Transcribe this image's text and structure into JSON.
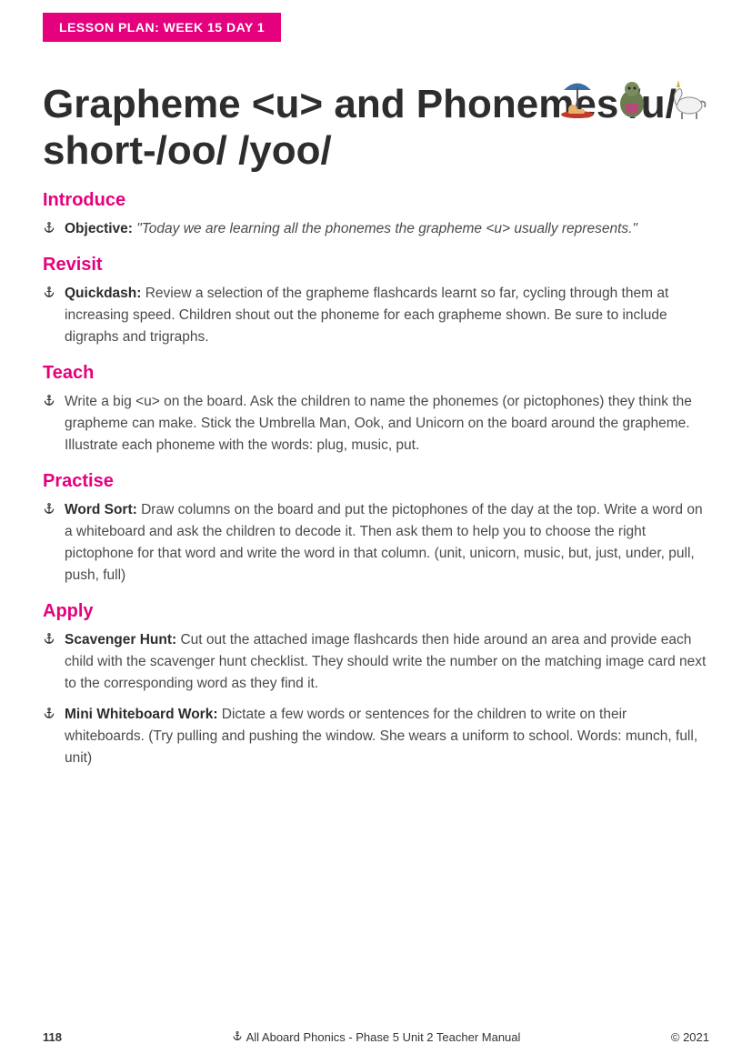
{
  "badge": "LESSON PLAN: WEEK 15 DAY 1",
  "colors": {
    "accent": "#e5007e",
    "text": "#3a3a3a",
    "heading": "#2d2d2d",
    "bg": "#ffffff"
  },
  "title": "Grapheme <u> and Phonemes /u/ short-/oo/ /yoo/",
  "illustrations": [
    "beach-umbrella-character",
    "ogre-reading",
    "unicorn"
  ],
  "sections": [
    {
      "heading": "Introduce",
      "items": [
        {
          "label": "Objective:",
          "text_italic": "\"Today we are learning all the phonemes the grapheme <u> usually represents.\""
        }
      ]
    },
    {
      "heading": "Revisit",
      "items": [
        {
          "label": "Quickdash:",
          "text": "Review a selection of the grapheme flashcards learnt so far, cycling through them at increasing speed. Children shout out the phoneme for each grapheme shown. Be sure to include digraphs and trigraphs."
        }
      ]
    },
    {
      "heading": "Teach",
      "items": [
        {
          "text": "Write a big <u> on the board. Ask the children to name the phonemes (or pictophones) they think the grapheme can make. Stick the Umbrella Man, Ook, and Unicorn on the board around the grapheme. Illustrate each phoneme with the words: plug, music, put."
        }
      ]
    },
    {
      "heading": "Practise",
      "items": [
        {
          "label": "Word Sort:",
          "text": "Draw columns on the board and put the pictophones of the day at the top. Write a word on a whiteboard and ask the children to decode it. Then ask them to help you to choose the right pictophone for that word and write the word in that column. (unit, unicorn, music, but, just, under, pull, push, full)"
        }
      ]
    },
    {
      "heading": "Apply",
      "items": [
        {
          "label": "Scavenger Hunt:",
          "text": "Cut out the attached image flashcards then hide around an area and provide each child with the scavenger hunt checklist. They should write the number on the matching image card next to the corresponding word as they find it."
        },
        {
          "label": "Mini Whiteboard Work:",
          "text": "Dictate a few words or sentences for the children to write on their whiteboards. (Try pulling and pushing the window. She wears a uniform to school. Words: munch, full, unit)"
        }
      ]
    }
  ],
  "footer": {
    "page": "118",
    "title": "All Aboard Phonics - Phase 5 Unit 2 Teacher Manual",
    "copyright": "© 2021"
  }
}
